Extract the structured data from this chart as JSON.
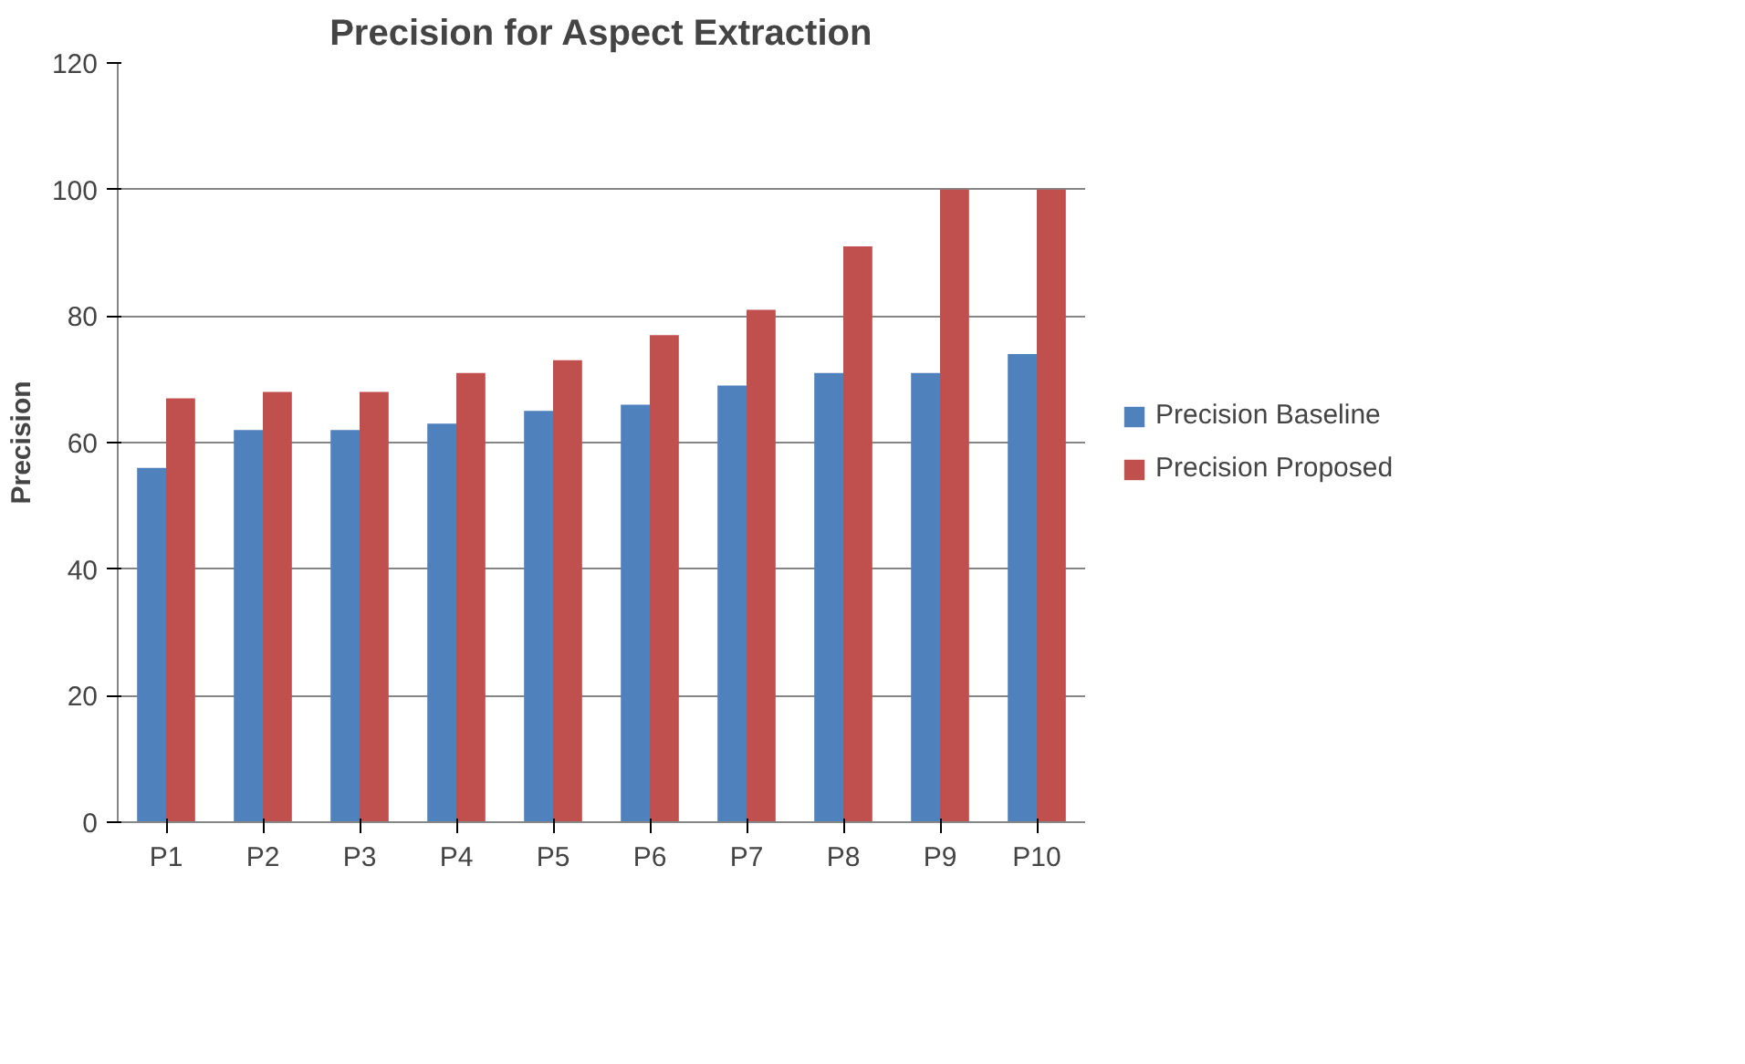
{
  "chart_data": {
    "type": "bar",
    "title": "Precision for Aspect Extraction",
    "ylabel": "Precision",
    "categories": [
      "P1",
      "P2",
      "P3",
      "P4",
      "P5",
      "P6",
      "P7",
      "P8",
      "P9",
      "P10"
    ],
    "series": [
      {
        "name": "Precision Baseline",
        "color": "#4f81bd",
        "values": [
          56,
          62,
          62,
          63,
          65,
          66,
          69,
          71,
          71,
          74
        ]
      },
      {
        "name": "Precision Proposed",
        "color": "#c0504d",
        "values": [
          67,
          68,
          68,
          71,
          73,
          77,
          81,
          91,
          100,
          100
        ]
      }
    ],
    "ylim": [
      0,
      120
    ],
    "yticks": [
      0,
      20,
      40,
      60,
      80,
      100,
      120
    ],
    "grid": "y",
    "legend": "right"
  }
}
